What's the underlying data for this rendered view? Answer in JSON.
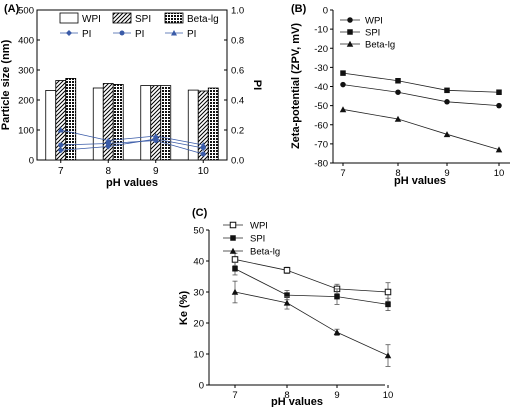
{
  "chart_data": [
    {
      "panel": "(A)",
      "type": "bar",
      "xlabel": "pH values",
      "ylabel": "Particle size (nm)",
      "y2label": "PI",
      "categories": [
        "7",
        "8",
        "9",
        "10"
      ],
      "ylim": [
        0,
        500
      ],
      "yticks": [
        0,
        100,
        200,
        300,
        400,
        500
      ],
      "y2lim": [
        0,
        1.0
      ],
      "y2ticks": [
        0.0,
        0.2,
        0.4,
        0.6,
        0.8,
        1.0
      ],
      "y2ticklabels": [
        "0.0",
        "0.2",
        "0.4",
        "0.6",
        "0.8",
        "1.0"
      ],
      "series": [
        {
          "name": "WPI",
          "values": [
            232,
            240,
            248,
            233
          ],
          "pattern": "blank"
        },
        {
          "name": "SPI",
          "values": [
            265,
            255,
            248,
            230
          ],
          "pattern": "hatch"
        },
        {
          "name": "Beta-lg",
          "values": [
            272,
            252,
            248,
            240
          ],
          "pattern": "checker"
        }
      ],
      "line_series": [
        {
          "name": "PI",
          "marker": "diamond",
          "values": [
            0.065,
            0.09,
            0.14,
            0.08
          ]
        },
        {
          "name": "PI",
          "marker": "circle",
          "values": [
            0.1,
            0.11,
            0.13,
            0.04
          ]
        },
        {
          "name": "PI",
          "marker": "triangle",
          "values": [
            0.2,
            0.13,
            0.16,
            0.1
          ]
        }
      ]
    },
    {
      "panel": "(B)",
      "type": "line",
      "xlabel": "pH values",
      "ylabel": "Zeta-potential (ZPV, mV)",
      "x": [
        "7",
        "8",
        "9",
        "10"
      ],
      "ylim": [
        -80,
        0
      ],
      "yticks": [
        -80,
        -70,
        -60,
        -50,
        -40,
        -30,
        -20,
        -10,
        0
      ],
      "series": [
        {
          "name": "WPI",
          "marker": "circle",
          "values": [
            -39,
            -43,
            -48,
            -50
          ]
        },
        {
          "name": "SPI",
          "marker": "square",
          "values": [
            -33,
            -37,
            -42,
            -43
          ]
        },
        {
          "name": "Beta-lg",
          "marker": "triangle",
          "values": [
            -52,
            -57,
            -65,
            -73
          ]
        }
      ]
    },
    {
      "panel": "(C)",
      "type": "line",
      "xlabel": "pH values",
      "ylabel": "Ke (%)",
      "x": [
        "7",
        "8",
        "9",
        "10"
      ],
      "ylim": [
        0,
        50
      ],
      "yticks": [
        0,
        10,
        20,
        30,
        40,
        50
      ],
      "series": [
        {
          "name": "WPI",
          "marker": "open-square",
          "values": [
            40.5,
            37,
            31,
            30
          ],
          "errors": [
            2,
            1,
            1.5,
            3
          ]
        },
        {
          "name": "SPI",
          "marker": "square",
          "values": [
            37.5,
            29,
            28.5,
            26
          ],
          "errors": [
            2,
            1.5,
            2.5,
            2
          ]
        },
        {
          "name": "Beta-lg",
          "marker": "triangle",
          "values": [
            30,
            26.5,
            17,
            9.5
          ],
          "errors": [
            3.5,
            2,
            1,
            3.5
          ]
        }
      ]
    }
  ]
}
